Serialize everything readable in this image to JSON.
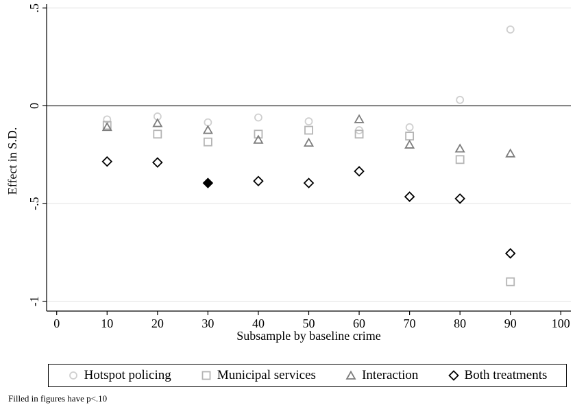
{
  "chart_data": {
    "type": "scatter",
    "xlabel": "Subsample by baseline crime",
    "ylabel": "Effect in S.D.",
    "xlim": [
      -2,
      102
    ],
    "ylim": [
      -1.05,
      0.52
    ],
    "x_ticks": [
      0,
      10,
      20,
      30,
      40,
      50,
      60,
      70,
      80,
      90,
      100
    ],
    "x_tick_labels": [
      "0",
      "10",
      "20",
      "30",
      "40",
      "50",
      "60",
      "70",
      "80",
      "90",
      "100"
    ],
    "y_ticks": [
      0.5,
      0,
      -0.5,
      -1
    ],
    "y_tick_labels": [
      ".5",
      "0",
      "-.5",
      "-1"
    ],
    "reference_line_y": 0,
    "grid": "horizontal",
    "legend_position": "bottom",
    "series": [
      {
        "name": "Hotspot policing",
        "marker": "circle",
        "color": "#cfcfcf",
        "x": [
          10,
          20,
          30,
          40,
          50,
          60,
          70,
          80,
          90
        ],
        "y": [
          -0.07,
          -0.055,
          -0.085,
          -0.06,
          -0.08,
          -0.125,
          -0.11,
          0.03,
          0.39
        ],
        "filled": [
          false,
          false,
          false,
          false,
          false,
          false,
          false,
          false,
          false
        ]
      },
      {
        "name": "Municipal services",
        "marker": "square",
        "color": "#b4b4b4",
        "x": [
          10,
          20,
          30,
          40,
          50,
          60,
          70,
          80,
          90
        ],
        "y": [
          -0.1,
          -0.145,
          -0.185,
          -0.145,
          -0.125,
          -0.145,
          -0.155,
          -0.275,
          -0.9
        ],
        "filled": [
          false,
          false,
          false,
          false,
          false,
          false,
          false,
          false,
          false
        ]
      },
      {
        "name": "Interaction",
        "marker": "triangle",
        "color": "#7d7d7d",
        "x": [
          10,
          20,
          30,
          40,
          50,
          60,
          70,
          80,
          90
        ],
        "y": [
          -0.11,
          -0.09,
          -0.125,
          -0.175,
          -0.19,
          -0.07,
          -0.2,
          -0.22,
          -0.245
        ],
        "filled": [
          false,
          false,
          false,
          false,
          false,
          false,
          false,
          false,
          false
        ]
      },
      {
        "name": "Both treatments",
        "marker": "diamond",
        "color": "#000000",
        "x": [
          10,
          20,
          30,
          40,
          50,
          60,
          70,
          80,
          90
        ],
        "y": [
          -0.285,
          -0.29,
          -0.395,
          -0.385,
          -0.395,
          -0.335,
          -0.465,
          -0.475,
          -0.755
        ],
        "filled": [
          false,
          false,
          true,
          false,
          false,
          false,
          false,
          false,
          false
        ]
      }
    ]
  },
  "footnote": "Filled in figures have p<.10"
}
